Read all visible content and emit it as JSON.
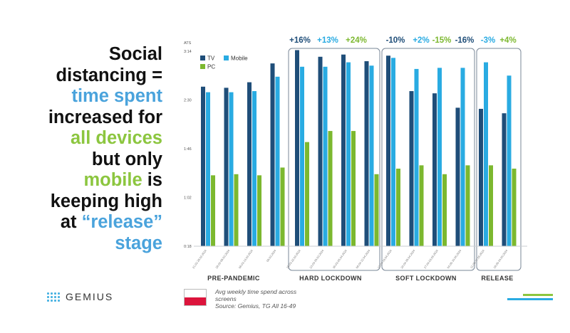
{
  "headline": {
    "l1": "Social",
    "l2": "distancing =",
    "l3": "time spent",
    "l4": "increased for",
    "l5": "all devices",
    "l6": "but only",
    "l7a": "mobile",
    "l7b": " is",
    "l8": "keeping high",
    "l9a": "at ",
    "l9b": "“release”",
    "l10": "stage"
  },
  "brand": {
    "name": "GEMIUS"
  },
  "footnote": {
    "line1": "Avg weekly time spend across",
    "line2": "screens",
    "line3": "Source: Gemius, TG All 16-49"
  },
  "colors": {
    "tv": "#1f4e79",
    "mobile": "#29abe2",
    "pc": "#7cb82f",
    "accent_blue": "#4aa3dc",
    "accent_green": "#8cc63f",
    "deco_blue": "#29abe2",
    "deco_green": "#8cc63f"
  },
  "chart_data": {
    "type": "bar",
    "y_axis_title": "ATS",
    "y_ticks": [
      "0:18",
      "1:02",
      "1:46",
      "2:30",
      "3:14"
    ],
    "y_tick_values": [
      18,
      62,
      106,
      150,
      194
    ],
    "ylim": [
      18,
      194
    ],
    "grid": false,
    "legend_position": "top-left",
    "categories": [
      "21.02-28.02.2024",
      "28.02-06.03.2024",
      "06.03-13.03.2024",
      "09.03.2024",
      "16.03-22.03.2024",
      "23.03-29.03.2024",
      "30.03-05.04.2024",
      "06.04-12.04.2024",
      "13.04-19.04.2024",
      "20.04-26.04.2024",
      "27.04-03.05.2024",
      "04.05-10.05.2024",
      "11.05-17.05.2024",
      "18.05-24.05.2024"
    ],
    "series": [
      {
        "name": "TV",
        "values": [
          162,
          161,
          166,
          183,
          195,
          189,
          191,
          185,
          190,
          158,
          156,
          143,
          142,
          138
        ]
      },
      {
        "name": "Mobile",
        "values": [
          157,
          157,
          158,
          171,
          180,
          180,
          184,
          181,
          188,
          178,
          179,
          179,
          184,
          172
        ]
      },
      {
        "name": "PC",
        "values": [
          82,
          83,
          82,
          89,
          112,
          122,
          122,
          83,
          88,
          91,
          83,
          91,
          91,
          88
        ]
      }
    ],
    "groups": [
      {
        "label": "PRE-PANDEMIC",
        "changes": []
      },
      {
        "label": "HARD LOCKDOWN",
        "changes": [
          {
            "text": "+16%",
            "series": "TV"
          },
          {
            "text": "+13%",
            "series": "Mobile"
          },
          {
            "text": "+24%",
            "series": "PC"
          }
        ]
      },
      {
        "label": "SOFT LOCKDOWN",
        "changes": [
          {
            "text": "-10%",
            "series": "TV"
          },
          {
            "text": "+2%",
            "series": "Mobile"
          },
          {
            "text": "-15%",
            "series": "PC"
          },
          {
            "text": "-16%",
            "series": "TV"
          }
        ]
      },
      {
        "label": "RELEASE",
        "changes": [
          {
            "text": "-3%",
            "series": "Mobile"
          },
          {
            "text": "+4%",
            "series": "PC"
          }
        ]
      }
    ]
  }
}
